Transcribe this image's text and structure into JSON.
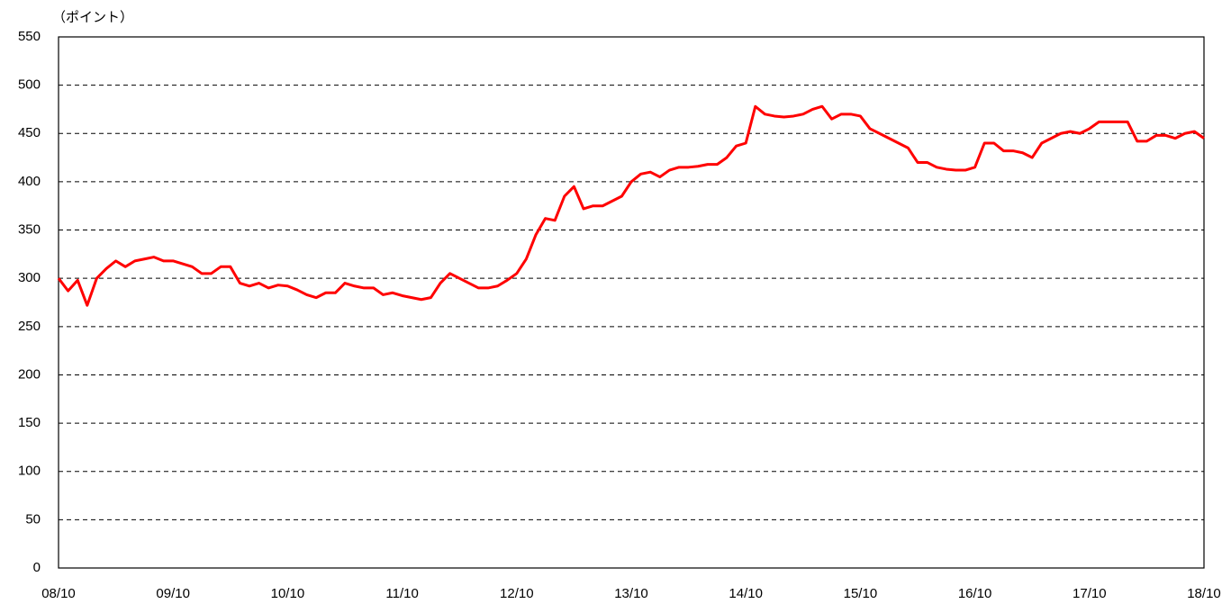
{
  "chart_data": {
    "type": "line",
    "y_label": "（ポイント）",
    "x": [
      "08/10",
      "08/11",
      "08/12",
      "09/01",
      "09/02",
      "09/03",
      "09/04",
      "09/05",
      "09/06",
      "09/07",
      "09/08",
      "09/09",
      "09/10",
      "09/11",
      "09/12",
      "10/01",
      "10/02",
      "10/03",
      "10/04",
      "10/05",
      "10/06",
      "10/07",
      "10/08",
      "10/09",
      "10/10",
      "10/11",
      "10/12",
      "11/01",
      "11/02",
      "11/03",
      "11/04",
      "11/05",
      "11/06",
      "11/07",
      "11/08",
      "11/09",
      "11/10",
      "11/11",
      "11/12",
      "12/01",
      "12/02",
      "12/03",
      "12/04",
      "12/05",
      "12/06",
      "12/07",
      "12/08",
      "12/09",
      "12/10",
      "12/11",
      "12/12",
      "13/01",
      "13/02",
      "13/03",
      "13/04",
      "13/05",
      "13/06",
      "13/07",
      "13/08",
      "13/09",
      "13/10",
      "13/11",
      "13/12",
      "14/01",
      "14/02",
      "14/03",
      "14/04",
      "14/05",
      "14/06",
      "14/07",
      "14/08",
      "14/09",
      "14/10",
      "14/11",
      "14/12",
      "15/01",
      "15/02",
      "15/03",
      "15/04",
      "15/05",
      "15/06",
      "15/07",
      "15/08",
      "15/09",
      "15/10",
      "15/11",
      "15/12",
      "16/01",
      "16/02",
      "16/03",
      "16/04",
      "16/05",
      "16/06",
      "16/07",
      "16/08",
      "16/09",
      "16/10",
      "16/11",
      "16/12",
      "17/01",
      "17/02",
      "17/03",
      "17/04",
      "17/05",
      "17/06",
      "17/07",
      "17/08",
      "17/09",
      "17/10",
      "17/11",
      "17/12",
      "18/01",
      "18/02",
      "18/03",
      "18/04",
      "18/05",
      "18/06",
      "18/07",
      "18/08",
      "18/09",
      "18/10"
    ],
    "series": [
      {
        "color": "#ff0000",
        "values": [
          300,
          287,
          298,
          272,
          300,
          310,
          318,
          312,
          318,
          320,
          322,
          318,
          318,
          315,
          312,
          305,
          305,
          312,
          312,
          295,
          292,
          295,
          290,
          293,
          292,
          288,
          283,
          280,
          285,
          285,
          295,
          292,
          290,
          290,
          283,
          285,
          282,
          280,
          278,
          280,
          295,
          305,
          300,
          295,
          290,
          290,
          292,
          298,
          305,
          320,
          345,
          362,
          360,
          385,
          395,
          372,
          375,
          375,
          380,
          385,
          400,
          408,
          410,
          405,
          412,
          415,
          415,
          416,
          418,
          418,
          425,
          437,
          440,
          478,
          470,
          468,
          467,
          468,
          470,
          475,
          478,
          465,
          470,
          470,
          468,
          455,
          450,
          445,
          440,
          435,
          420,
          420,
          415,
          413,
          412,
          412,
          415,
          440,
          440,
          432,
          432,
          430,
          425,
          440,
          445,
          450,
          452,
          450,
          455,
          462,
          462,
          462,
          462,
          442,
          442,
          448,
          448,
          445,
          450,
          452,
          445
        ]
      }
    ],
    "xticks": [
      "08/10",
      "09/10",
      "10/10",
      "11/10",
      "12/10",
      "13/10",
      "14/10",
      "15/10",
      "16/10",
      "17/10",
      "18/10"
    ],
    "ylim": [
      0,
      550
    ],
    "yticks": [
      0,
      50,
      100,
      150,
      200,
      250,
      300,
      350,
      400,
      450,
      500,
      550
    ],
    "grid": true
  }
}
